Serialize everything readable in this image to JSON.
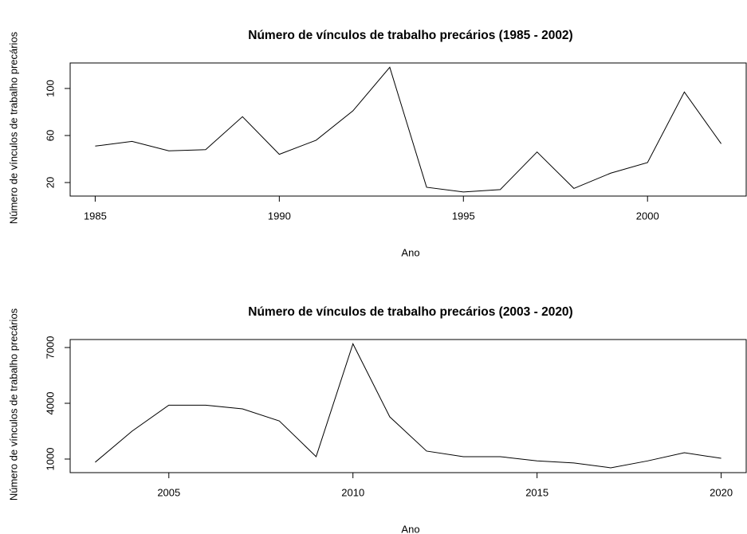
{
  "chart_data": [
    {
      "type": "line",
      "title": "Número de vínculos de trabalho precários (1985 - 2002)",
      "x_label": "Ano",
      "y_label": "Número de vínculos de trabalho precários",
      "x": [
        1985,
        1986,
        1987,
        1988,
        1989,
        1990,
        1991,
        1992,
        1993,
        1994,
        1995,
        1996,
        1997,
        1998,
        1999,
        2000,
        2001,
        2002
      ],
      "series": [
        {
          "color": "#000000",
          "values": [
            51,
            55,
            47,
            48,
            76,
            44,
            56,
            81,
            118,
            16,
            12,
            14,
            46,
            15,
            28,
            37,
            97,
            53
          ]
        }
      ],
      "xlim": [
        1984.32,
        2002.68
      ],
      "xticks": [
        1985,
        1990,
        1995,
        2000
      ],
      "ylim": [
        8.5,
        121.7
      ],
      "yticks": [
        20,
        60,
        100
      ]
    },
    {
      "type": "line",
      "title": "Número de vínculos de trabalho precários (2003 - 2020)",
      "x_label": "Ano",
      "y_label": "Número de vínculos de trabalho precários",
      "x": [
        2003,
        2004,
        2005,
        2006,
        2007,
        2008,
        2009,
        2010,
        2011,
        2012,
        2013,
        2014,
        2015,
        2016,
        2017,
        2018,
        2019,
        2020
      ],
      "series": [
        {
          "color": "#000000",
          "values": [
            830,
            2500,
            3900,
            3900,
            3700,
            3050,
            1130,
            7200,
            3270,
            1430,
            1130,
            1130,
            900,
            790,
            530,
            900,
            1340,
            1040
          ]
        }
      ],
      "xlim": [
        2002.32,
        2020.68
      ],
      "xticks": [
        2005,
        2010,
        2015,
        2020
      ],
      "ylim": [
        270,
        7430
      ],
      "yticks": [
        1000,
        4000,
        7000
      ]
    }
  ]
}
